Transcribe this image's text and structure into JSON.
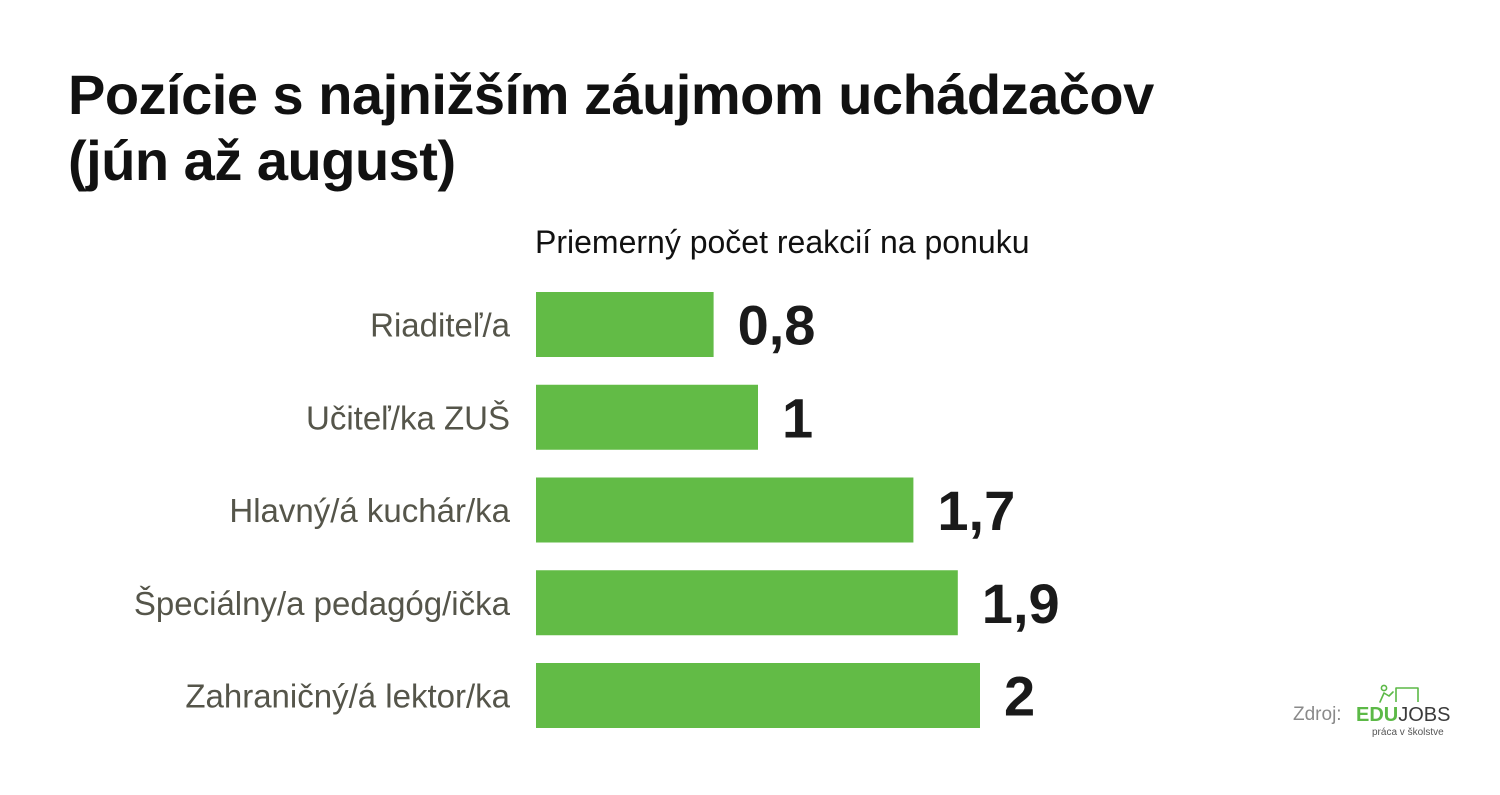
{
  "header": {
    "title_line1": "Pozície s najnižším záujmom uchádzačov",
    "title_line2": "(jún až august)"
  },
  "chart_data": {
    "type": "bar",
    "orientation": "horizontal",
    "subtitle": "Priemerný počet reakcií na ponuku",
    "categories": [
      "Riaditeľ/a",
      "Učiteľ/ka ZUŠ",
      "Hlavný/á kuchár/ka",
      "Špeciálny/a pedagóg/ička",
      "Zahraničný/á lektor/ka"
    ],
    "values": [
      0.8,
      1,
      1.7,
      1.9,
      2
    ],
    "value_labels": [
      "0,8",
      "1",
      "1,7",
      "1,9",
      "2"
    ],
    "xlim": [
      0,
      2.5
    ],
    "grid": false,
    "legend": "none",
    "bar_color": "#62bb46"
  },
  "footer": {
    "source_label": "Zdroj:",
    "logo_edu": "EDU",
    "logo_jobs": "JOBS",
    "logo_tagline": "práca v školstve"
  }
}
